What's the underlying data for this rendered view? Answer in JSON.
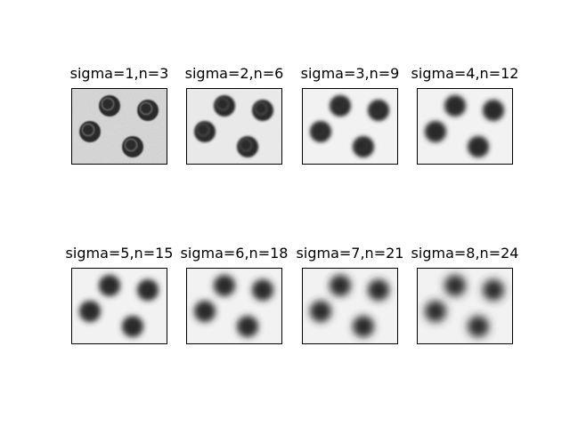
{
  "panels": [
    {
      "title": "sigma=1,n=3",
      "sigma": 1
    },
    {
      "title": "sigma=2,n=6",
      "sigma": 2
    },
    {
      "title": "sigma=3,n=9",
      "sigma": 3
    },
    {
      "title": "sigma=4,n=12",
      "sigma": 4
    },
    {
      "title": "sigma=5,n=15",
      "sigma": 5
    },
    {
      "title": "sigma=6,n=18",
      "sigma": 6
    },
    {
      "title": "sigma=7,n=21",
      "sigma": 7
    },
    {
      "title": "sigma=8,n=24",
      "sigma": 8
    }
  ],
  "colors": {
    "background": "#ffffff",
    "frame": "#000000",
    "coin": "#2a2a2a",
    "image_bg_noisy": "#d8d8d8",
    "image_bg_smooth": "#f2f2f2"
  }
}
